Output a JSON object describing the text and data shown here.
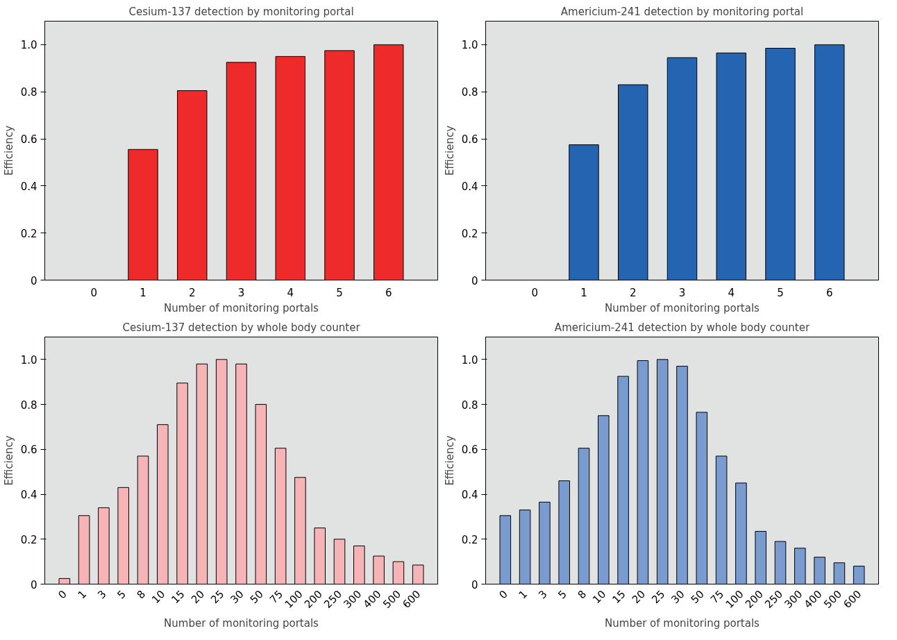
{
  "chart_data": [
    {
      "type": "bar",
      "title": "Cesium-137 detection by monitoring portal",
      "xlabel": "Number of monitoring portals",
      "ylabel": "Efficiency",
      "categories": [
        "0",
        "1",
        "2",
        "3",
        "4",
        "5",
        "6"
      ],
      "values": [
        0,
        0.555,
        0.805,
        0.925,
        0.95,
        0.975,
        1.0
      ],
      "color": "#ee2a2a",
      "ylim": [
        0,
        1.1
      ],
      "yticks": [
        0,
        {
          "value": 0.2,
          "label": "0.2"
        },
        {
          "value": 0.4,
          "label": "0.4"
        },
        {
          "value": 0.6,
          "label": "0.6"
        },
        {
          "value": 0.8,
          "label": "0.8"
        },
        {
          "value": 1,
          "label": "1.0"
        }
      ],
      "grid": false
    },
    {
      "type": "bar",
      "title": "Americium-241 detection by monitoring portal",
      "xlabel": "Number of monitoring portals",
      "ylabel": "Efficiency",
      "categories": [
        "0",
        "1",
        "2",
        "3",
        "4",
        "5",
        "6"
      ],
      "values": [
        0,
        0.575,
        0.83,
        0.945,
        0.965,
        0.985,
        1.0
      ],
      "color": "#2464b0",
      "ylim": [
        0,
        1.1
      ],
      "yticks": [
        0,
        {
          "value": 0.2,
          "label": "0.2"
        },
        {
          "value": 0.4,
          "label": "0.4"
        },
        {
          "value": 0.6,
          "label": "0.6"
        },
        {
          "value": 0.8,
          "label": "0.8"
        },
        {
          "value": 1,
          "label": "1.0"
        }
      ],
      "grid": false
    },
    {
      "type": "bar",
      "title": "Cesium-137 detection by whole body counter",
      "xlabel": "Number of monitoring portals",
      "ylabel": "Efficiency",
      "categories": [
        "0",
        "1",
        "3",
        "5",
        "8",
        "10",
        "15",
        "20",
        "25",
        "30",
        "50",
        "75",
        "100",
        "200",
        "250",
        "300",
        "400",
        "500",
        "600"
      ],
      "values": [
        0.025,
        0.305,
        0.34,
        0.43,
        0.57,
        0.71,
        0.895,
        0.98,
        1.0,
        0.98,
        0.8,
        0.605,
        0.475,
        0.25,
        0.2,
        0.17,
        0.125,
        0.1,
        0.085
      ],
      "color": "#f6b4b6",
      "ylim": [
        0,
        1.1
      ],
      "yticks": [
        0,
        {
          "value": 0.2,
          "label": "0.2"
        },
        {
          "value": 0.4,
          "label": "0.4"
        },
        {
          "value": 0.6,
          "label": "0.6"
        },
        {
          "value": 0.8,
          "label": "0.8"
        },
        {
          "value": 1,
          "label": "1.0"
        }
      ],
      "grid": false
    },
    {
      "type": "bar",
      "title": "Americium-241 detection by whole body counter",
      "xlabel": "Number of monitoring portals",
      "ylabel": "Efficiency",
      "categories": [
        "0",
        "1",
        "3",
        "5",
        "8",
        "10",
        "15",
        "20",
        "25",
        "30",
        "50",
        "75",
        "100",
        "200",
        "250",
        "300",
        "400",
        "500",
        "600"
      ],
      "values": [
        0.305,
        0.33,
        0.365,
        0.46,
        0.605,
        0.75,
        0.925,
        0.995,
        1.0,
        0.97,
        0.765,
        0.57,
        0.45,
        0.235,
        0.19,
        0.16,
        0.12,
        0.095,
        0.08
      ],
      "color": "#7a9bd0",
      "ylim": [
        0,
        1.1
      ],
      "yticks": [
        0,
        {
          "value": 0.2,
          "label": "0.2"
        },
        {
          "value": 0.4,
          "label": "0.4"
        },
        {
          "value": 0.6,
          "label": "0.6"
        },
        {
          "value": 0.8,
          "label": "0.8"
        },
        {
          "value": 1,
          "label": "1.0"
        }
      ],
      "grid": false
    }
  ]
}
